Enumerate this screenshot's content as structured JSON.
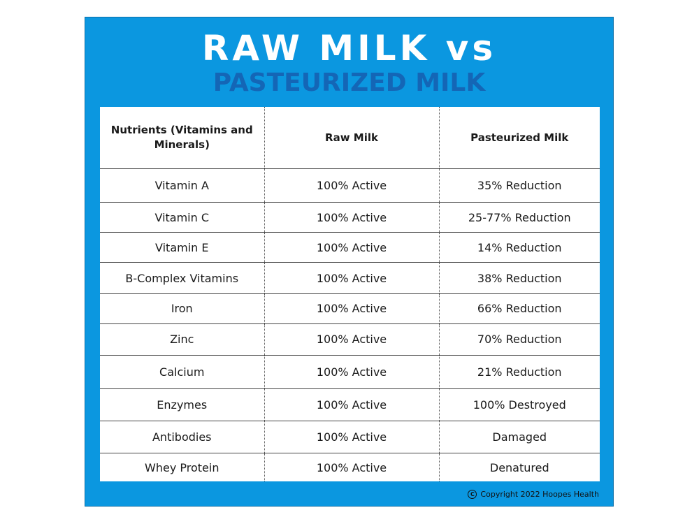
{
  "header": {
    "title": "RAW MILK vs",
    "subtitle": "PASTEURIZED MILK"
  },
  "table": {
    "headers": [
      "Nutrients (Vitamins and Minerals)",
      "Raw Milk",
      "Pasteurized Milk"
    ],
    "rows": [
      [
        "Vitamin A",
        "100% Active",
        "35% Reduction"
      ],
      [
        "Vitamin C",
        "100% Active",
        "25-77% Reduction"
      ],
      [
        "Vitamin E",
        "100% Active",
        "14% Reduction"
      ],
      [
        "B-Complex Vitamins",
        "100% Active",
        "38% Reduction"
      ],
      [
        "Iron",
        "100% Active",
        "66% Reduction"
      ],
      [
        "Zinc",
        "100% Active",
        "70% Reduction"
      ],
      [
        "Calcium",
        "100% Active",
        "21% Reduction"
      ],
      [
        "Enzymes",
        "100% Active",
        "100% Destroyed"
      ],
      [
        "Antibodies",
        "100% Active",
        "Damaged"
      ],
      [
        "Whey Protein",
        "100% Active",
        "Denatured"
      ]
    ]
  },
  "footer": {
    "copyright_icon": "copyright-icon",
    "copyright_symbol": "C",
    "copyright_text": "Copyright 2022 Hoopes Health"
  },
  "colors": {
    "background": "#0b97e0",
    "subtitle": "#1466b6",
    "title": "#ffffff"
  }
}
